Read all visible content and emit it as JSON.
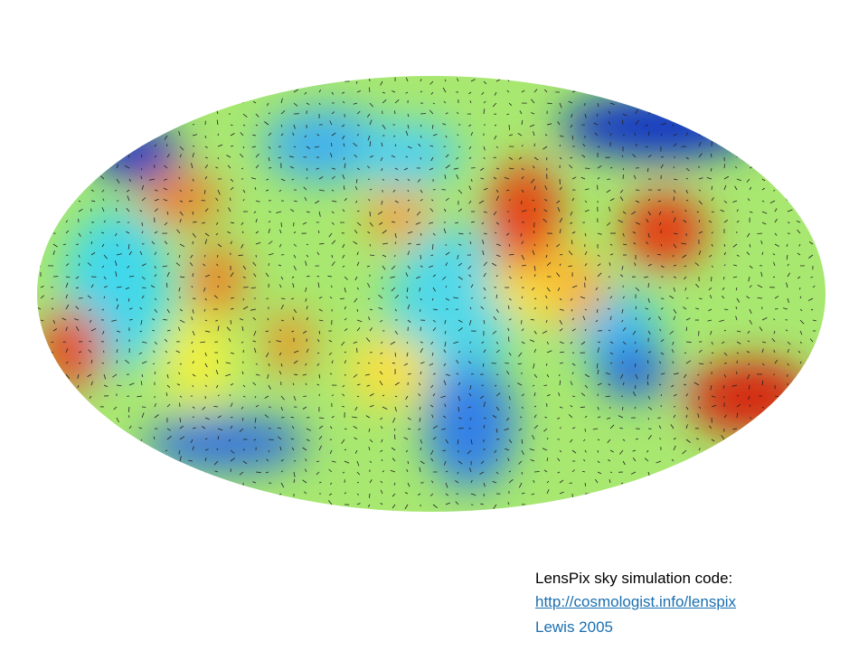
{
  "caption": {
    "title": "LensPix sky simulation code:",
    "link": "http://cosmologist.info/lenspix",
    "credit": "Lewis 2005"
  }
}
